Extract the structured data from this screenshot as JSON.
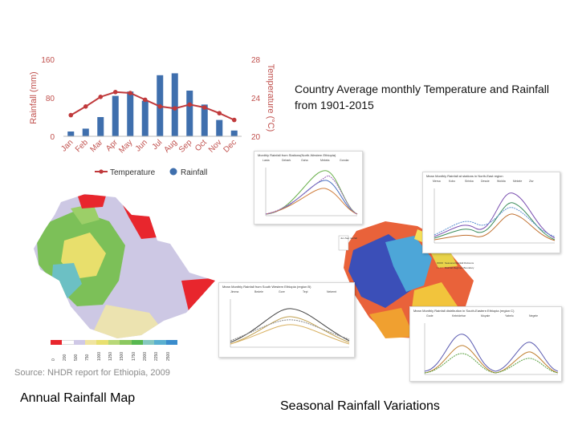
{
  "chart_data": {
    "type": "bar+line",
    "categories": [
      "Jan",
      "Feb",
      "Mar",
      "Apr",
      "May",
      "Jun",
      "Jul",
      "Aug",
      "Sep",
      "Oct",
      "Nov",
      "Dec"
    ],
    "series": [
      {
        "name": "Rainfall",
        "axis": "left",
        "values": [
          10,
          16,
          40,
          84,
          93,
          74,
          127,
          131,
          95,
          66,
          34,
          12
        ]
      },
      {
        "name": "Temperature",
        "axis": "right",
        "values": [
          22.2,
          23.1,
          24.1,
          24.6,
          24.5,
          23.8,
          23.1,
          22.9,
          23.3,
          23.0,
          22.4,
          21.7
        ]
      }
    ],
    "ylabel_left": "Rainfall (mm)",
    "ylabel_right": "Temperature (°C)",
    "yticks_left": [
      "160",
      "80",
      "0"
    ],
    "yticks_right": [
      "28",
      "24",
      "20"
    ],
    "ylim_left": [
      0,
      160
    ],
    "ylim_right": [
      20,
      28
    ],
    "legend": [
      "Temperature",
      "Rainfall"
    ],
    "colors": {
      "bar": "#3f6fad",
      "line": "#c0393b",
      "axis_text": "#c0504d"
    }
  },
  "chart_caption": "Country Average monthly Temperature and Rainfall from 1901-2015",
  "map_source": "Source: NHDR report for Ethiopia, 2009",
  "map_legend_values": [
    "0",
    "200",
    "500",
    "750",
    "1000",
    "1250",
    "1500",
    "1750",
    "2000",
    "2250",
    "2500"
  ],
  "map_legend_colors": [
    "#e8262d",
    "#ffffff",
    "#cfc8e6",
    "#f0e4a0",
    "#e8e070",
    "#b8d878",
    "#8cc860",
    "#58b850",
    "#86c8c0",
    "#5ab0d0",
    "#3a8ccc"
  ],
  "caption_left": "Annual  Rainfall Map",
  "caption_right": "Seasonal Rainfall Variations",
  "collage": {
    "top_left_title": "Monthly Rainfall from Stations(North-Western Ethiopia)",
    "top_left_legend": [
      "Lasta",
      "Debark",
      "Gaha",
      "Meketa",
      "Gondar"
    ],
    "top_right_title": "Mean Monthly Rainfall at stations in North-East region",
    "top_right_legend": [
      "Mersa",
      "Kobo",
      "Sirinka",
      "Dessie",
      "Woldia",
      "Mekele",
      "Ziw"
    ],
    "bottom_left_title": "Mean Monthly Rainfall from South Western Ethiopia (region B)",
    "bottom_left_legend": [
      "Jimma",
      "Bedele",
      "Gore",
      "Tepi",
      "Nekemt"
    ],
    "bottom_right_title": "Mean Monthly Rainfall distribution in South-Eastern Ethiopia (region C)",
    "bottom_right_legend": [
      "Gode",
      "Kebridehar",
      "Moyale",
      "Yabelo",
      "Negele"
    ],
    "map_legend": [
      "Jun-Sep rainfall"
    ],
    "boundary_legend": [
      "Seasonal Rainfall Divisions",
      "Rainfall Regimes Boundary"
    ]
  }
}
